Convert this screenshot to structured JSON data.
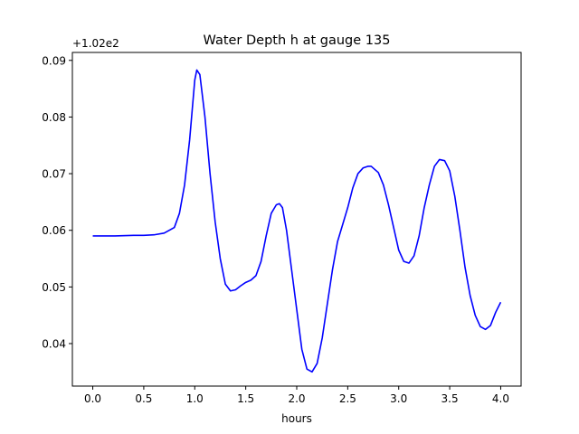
{
  "chart_data": {
    "type": "line",
    "title": "Water Depth h at gauge 135",
    "xlabel": "hours",
    "ylabel": "",
    "offset_label": "+1.02e2",
    "grid": false,
    "legend": "none",
    "xlim": [
      -0.2,
      4.2
    ],
    "ylim": [
      0.0325,
      0.0914
    ],
    "x_ticks": [
      0.0,
      0.5,
      1.0,
      1.5,
      2.0,
      2.5,
      3.0,
      3.5,
      4.0
    ],
    "x_tick_labels": [
      "0.0",
      "0.5",
      "1.0",
      "1.5",
      "2.0",
      "2.5",
      "3.0",
      "3.5",
      "4.0"
    ],
    "y_ticks": [
      0.04,
      0.05,
      0.06,
      0.07,
      0.08,
      0.09
    ],
    "y_tick_labels": [
      "0.04",
      "0.05",
      "0.06",
      "0.07",
      "0.08",
      "0.09"
    ],
    "series": [
      {
        "color": "#0000ff",
        "x": [
          0.0,
          0.2,
          0.4,
          0.5,
          0.6,
          0.7,
          0.8,
          0.85,
          0.9,
          0.95,
          1.0,
          1.02,
          1.05,
          1.1,
          1.15,
          1.2,
          1.25,
          1.3,
          1.35,
          1.4,
          1.45,
          1.5,
          1.55,
          1.6,
          1.65,
          1.7,
          1.75,
          1.8,
          1.83,
          1.86,
          1.9,
          1.95,
          2.0,
          2.05,
          2.1,
          2.15,
          2.2,
          2.25,
          2.3,
          2.35,
          2.4,
          2.5,
          2.55,
          2.6,
          2.65,
          2.7,
          2.73,
          2.8,
          2.85,
          2.9,
          2.95,
          3.0,
          3.05,
          3.1,
          3.15,
          3.2,
          3.25,
          3.3,
          3.35,
          3.4,
          3.45,
          3.5,
          3.55,
          3.6,
          3.65,
          3.7,
          3.75,
          3.8,
          3.85,
          3.9,
          3.95,
          4.0
        ],
        "values": [
          0.059,
          0.059,
          0.0591,
          0.0591,
          0.0592,
          0.0595,
          0.0605,
          0.063,
          0.068,
          0.076,
          0.0865,
          0.0883,
          0.0875,
          0.08,
          0.07,
          0.0615,
          0.055,
          0.0505,
          0.0493,
          0.0495,
          0.0502,
          0.0508,
          0.0512,
          0.052,
          0.0545,
          0.059,
          0.063,
          0.0645,
          0.0647,
          0.064,
          0.06,
          0.053,
          0.046,
          0.039,
          0.0355,
          0.035,
          0.0365,
          0.041,
          0.047,
          0.053,
          0.058,
          0.064,
          0.0675,
          0.07,
          0.071,
          0.0713,
          0.0713,
          0.0702,
          0.068,
          0.0645,
          0.0605,
          0.0565,
          0.0545,
          0.0542,
          0.0555,
          0.059,
          0.064,
          0.068,
          0.0713,
          0.0725,
          0.0723,
          0.0705,
          0.066,
          0.06,
          0.0535,
          0.0485,
          0.045,
          0.043,
          0.0425,
          0.0432,
          0.0455,
          0.0473
        ]
      }
    ]
  }
}
